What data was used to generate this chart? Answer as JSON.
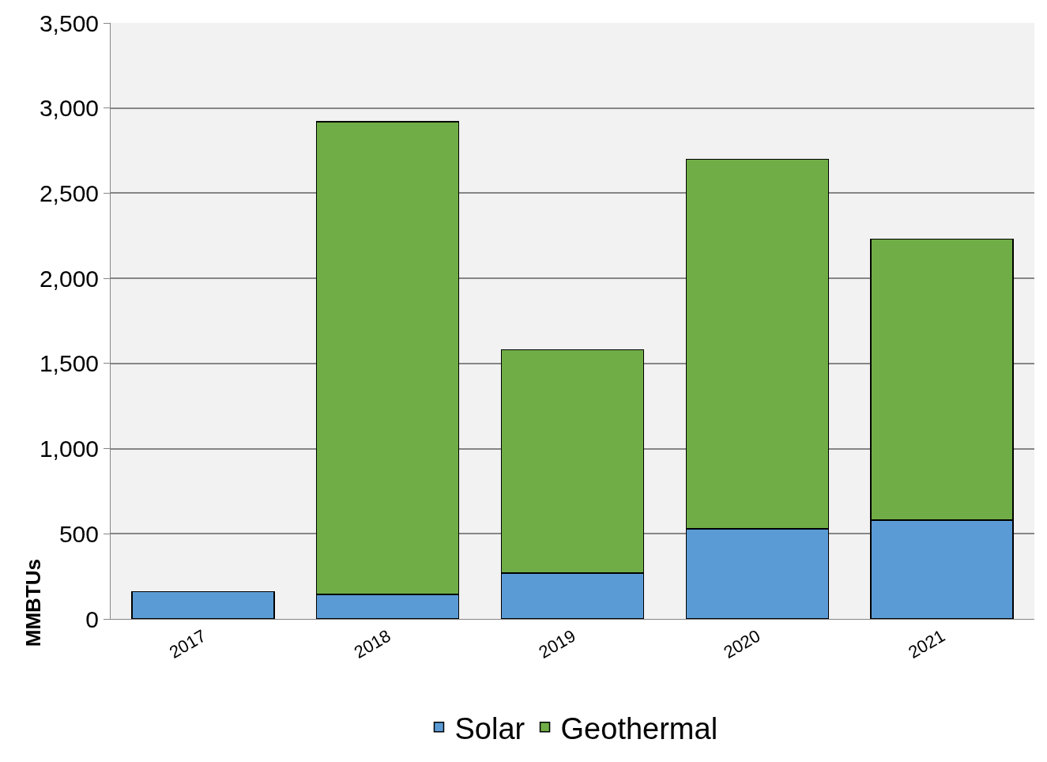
{
  "chart_data": {
    "type": "bar",
    "stacked": true,
    "ylabel": "MMBTUs",
    "categories": [
      "2017",
      "2018",
      "2019",
      "2020",
      "2021"
    ],
    "series": [
      {
        "name": "Solar",
        "color": "#5b9bd5",
        "values": [
          160,
          145,
          270,
          530,
          580
        ]
      },
      {
        "name": "Geothermal",
        "color": "#70ad47",
        "values": [
          null,
          2775,
          1310,
          2170,
          1650
        ]
      }
    ],
    "ylim": [
      0,
      3500
    ],
    "yticks": [
      {
        "value": 0,
        "label": "0"
      },
      {
        "value": 500,
        "label": "500"
      },
      {
        "value": 1000,
        "label": "1,000"
      },
      {
        "value": 1500,
        "label": "1,500"
      },
      {
        "value": 2000,
        "label": "2,000"
      },
      {
        "value": 2500,
        "label": "2,500"
      },
      {
        "value": 3000,
        "label": "3,000"
      },
      {
        "value": 3500,
        "label": "3,500"
      }
    ],
    "grid": "y",
    "legend": "bottom"
  }
}
